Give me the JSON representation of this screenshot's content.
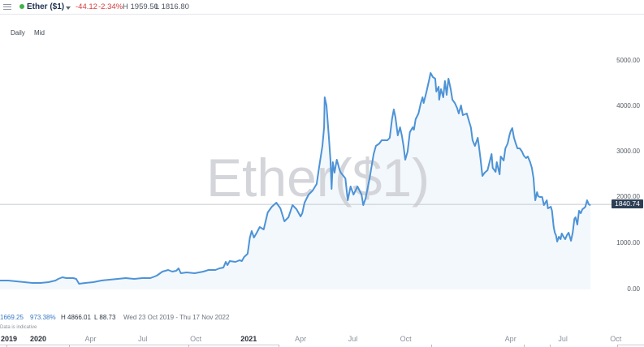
{
  "header": {
    "menu_icon": "hamburger-icon",
    "status_color": "#3cb44b",
    "instrument": "Ether ($1)",
    "dropdown_icon": "caret-down-icon",
    "change": "-44.12",
    "change_pct": "-2.34%",
    "change_color": "#d63b3b",
    "high": "H 1959.50",
    "low": "L 1816.80"
  },
  "toolbar": {
    "interval": "Daily",
    "price_type": "Mid"
  },
  "watermark": "Ether($1)",
  "price_tag": "1840.74",
  "footer": {
    "last": "1669.25",
    "change_pct": "973.38%",
    "high": "H 4866.01",
    "low": "L 88.73",
    "range": "Wed 23 Oct 2019 - Thu 17 Nov 2022",
    "disclaimer": "Data is indicative"
  },
  "colors": {
    "line": "#4d93d6",
    "fill": "#f3f8fd",
    "watermark": "#d3d5da",
    "price_line": "#c5c9cf",
    "price_tag_bg": "#2d3f55",
    "footer_blue": "#3a78c4"
  },
  "chart_data": {
    "type": "area",
    "title": "Ether ($1)",
    "subtitle": "Daily Mid",
    "xlabel": "",
    "ylabel": "",
    "ylim": [
      0,
      5000
    ],
    "y_tick_labels": [
      "5000.00",
      "4000.00",
      "3000.00",
      "2000.00",
      "1000.00",
      "0.00"
    ],
    "y_ticks": [
      5000,
      4000,
      3000,
      2000,
      1000,
      0
    ],
    "x_ticks": [
      {
        "label": "2019",
        "date": "2019-10-23",
        "year": true,
        "align": "left"
      },
      {
        "label": "2020",
        "date": "2020-01-01",
        "year": true
      },
      {
        "label": "Apr",
        "date": "2020-04-01"
      },
      {
        "label": "Jul",
        "date": "2020-07-01"
      },
      {
        "label": "Oct",
        "date": "2020-10-01"
      },
      {
        "label": "2021",
        "date": "2021-01-01",
        "year": true
      },
      {
        "label": "Apr",
        "date": "2021-04-01"
      },
      {
        "label": "Jul",
        "date": "2021-07-01"
      },
      {
        "label": "Oct",
        "date": "2021-10-01"
      },
      {
        "label": "Apr",
        "date": "2022-04-01"
      },
      {
        "label": "Jul",
        "date": "2022-07-01"
      },
      {
        "label": "Oct",
        "date": "2022-10-01"
      }
    ],
    "grid": false,
    "legend": "none",
    "last_value": 1840.74,
    "series": [
      {
        "name": "Ether ($1) Mid",
        "points": [
          [
            "2019-10-23",
            195
          ],
          [
            "2019-11-10",
            195
          ],
          [
            "2019-11-24",
            177
          ],
          [
            "2019-12-08",
            160
          ],
          [
            "2019-12-22",
            142
          ],
          [
            "2020-01-05",
            142
          ],
          [
            "2020-01-19",
            160
          ],
          [
            "2020-01-31",
            195
          ],
          [
            "2020-02-05",
            230
          ],
          [
            "2020-02-12",
            266
          ],
          [
            "2020-02-19",
            248
          ],
          [
            "2020-03-02",
            248
          ],
          [
            "2020-03-07",
            230
          ],
          [
            "2020-03-12",
            124
          ],
          [
            "2020-03-23",
            142
          ],
          [
            "2020-04-06",
            160
          ],
          [
            "2020-04-20",
            195
          ],
          [
            "2020-05-04",
            213
          ],
          [
            "2020-05-18",
            230
          ],
          [
            "2020-06-01",
            248
          ],
          [
            "2020-06-16",
            230
          ],
          [
            "2020-06-30",
            248
          ],
          [
            "2020-07-14",
            248
          ],
          [
            "2020-07-25",
            301
          ],
          [
            "2020-08-04",
            390
          ],
          [
            "2020-08-14",
            426
          ],
          [
            "2020-08-21",
            390
          ],
          [
            "2020-08-28",
            408
          ],
          [
            "2020-09-01",
            461
          ],
          [
            "2020-09-05",
            355
          ],
          [
            "2020-09-15",
            372
          ],
          [
            "2020-09-29",
            355
          ],
          [
            "2020-10-14",
            390
          ],
          [
            "2020-10-23",
            426
          ],
          [
            "2020-11-04",
            426
          ],
          [
            "2020-11-11",
            461
          ],
          [
            "2020-11-18",
            479
          ],
          [
            "2020-11-22",
            603
          ],
          [
            "2020-11-25",
            532
          ],
          [
            "2020-11-29",
            621
          ],
          [
            "2020-12-09",
            603
          ],
          [
            "2020-12-16",
            638
          ],
          [
            "2020-12-20",
            621
          ],
          [
            "2020-12-24",
            709
          ],
          [
            "2020-12-30",
            780
          ],
          [
            "2021-01-03",
            1135
          ],
          [
            "2021-01-06",
            1277
          ],
          [
            "2021-01-10",
            1135
          ],
          [
            "2021-01-15",
            1241
          ],
          [
            "2021-01-20",
            1365
          ],
          [
            "2021-01-27",
            1312
          ],
          [
            "2021-02-03",
            1684
          ],
          [
            "2021-02-10",
            1809
          ],
          [
            "2021-02-18",
            1897
          ],
          [
            "2021-02-25",
            1773
          ],
          [
            "2021-03-04",
            1489
          ],
          [
            "2021-03-11",
            1578
          ],
          [
            "2021-03-18",
            1844
          ],
          [
            "2021-03-25",
            1755
          ],
          [
            "2021-04-01",
            1596
          ],
          [
            "2021-04-04",
            1667
          ],
          [
            "2021-04-08",
            1897
          ],
          [
            "2021-04-15",
            2074
          ],
          [
            "2021-04-22",
            2163
          ],
          [
            "2021-04-29",
            2305
          ],
          [
            "2021-05-03",
            2642
          ],
          [
            "2021-05-09",
            3138
          ],
          [
            "2021-05-12",
            3546
          ],
          [
            "2021-05-13",
            4202
          ],
          [
            "2021-05-16",
            4025
          ],
          [
            "2021-05-20",
            3369
          ],
          [
            "2021-05-23",
            2837
          ],
          [
            "2021-05-25",
            2199
          ],
          [
            "2021-05-27",
            2784
          ],
          [
            "2021-05-30",
            2553
          ],
          [
            "2021-06-03",
            2837
          ],
          [
            "2021-06-08",
            2606
          ],
          [
            "2021-06-10",
            2553
          ],
          [
            "2021-06-18",
            2429
          ],
          [
            "2021-06-22",
            1950
          ],
          [
            "2021-06-27",
            2252
          ],
          [
            "2021-07-02",
            2074
          ],
          [
            "2021-07-09",
            2252
          ],
          [
            "2021-07-16",
            2074
          ],
          [
            "2021-07-19",
            1844
          ],
          [
            "2021-07-23",
            1986
          ],
          [
            "2021-07-30",
            2429
          ],
          [
            "2021-08-06",
            2961
          ],
          [
            "2021-08-10",
            3138
          ],
          [
            "2021-08-16",
            3191
          ],
          [
            "2021-08-20",
            3262
          ],
          [
            "2021-08-30",
            3262
          ],
          [
            "2021-09-03",
            3316
          ],
          [
            "2021-09-07",
            3723
          ],
          [
            "2021-09-10",
            3936
          ],
          [
            "2021-09-13",
            3759
          ],
          [
            "2021-09-17",
            3369
          ],
          [
            "2021-09-21",
            3546
          ],
          [
            "2021-09-24",
            3369
          ],
          [
            "2021-09-27",
            3138
          ],
          [
            "2021-09-30",
            2837
          ],
          [
            "2021-10-04",
            3014
          ],
          [
            "2021-10-08",
            3440
          ],
          [
            "2021-10-13",
            3546
          ],
          [
            "2021-10-15",
            3493
          ],
          [
            "2021-10-18",
            3723
          ],
          [
            "2021-10-23",
            3848
          ],
          [
            "2021-10-27",
            4078
          ],
          [
            "2021-10-30",
            4202
          ],
          [
            "2021-11-01",
            4078
          ],
          [
            "2021-11-06",
            4326
          ],
          [
            "2021-11-10",
            4557
          ],
          [
            "2021-11-13",
            4734
          ],
          [
            "2021-11-17",
            4645
          ],
          [
            "2021-11-21",
            4610
          ],
          [
            "2021-11-23",
            4326
          ],
          [
            "2021-11-27",
            4433
          ],
          [
            "2021-11-28",
            4149
          ],
          [
            "2021-12-01",
            4379
          ],
          [
            "2021-12-05",
            4202
          ],
          [
            "2021-12-08",
            4557
          ],
          [
            "2021-12-11",
            4255
          ],
          [
            "2021-12-14",
            4610
          ],
          [
            "2021-12-18",
            4379
          ],
          [
            "2021-12-21",
            4149
          ],
          [
            "2021-12-25",
            4078
          ],
          [
            "2021-12-29",
            3972
          ],
          [
            "2022-01-01",
            3848
          ],
          [
            "2022-01-05",
            4025
          ],
          [
            "2022-01-08",
            3812
          ],
          [
            "2022-01-15",
            3848
          ],
          [
            "2022-01-19",
            3670
          ],
          [
            "2022-01-22",
            3546
          ],
          [
            "2022-01-25",
            3262
          ],
          [
            "2022-01-29",
            3138
          ],
          [
            "2022-02-03",
            3316
          ],
          [
            "2022-02-05",
            3138
          ],
          [
            "2022-02-08",
            2837
          ],
          [
            "2022-02-11",
            2482
          ],
          [
            "2022-02-15",
            2553
          ],
          [
            "2022-02-20",
            2606
          ],
          [
            "2022-02-27",
            2961
          ],
          [
            "2022-03-01",
            2660
          ],
          [
            "2022-03-06",
            2571
          ],
          [
            "2022-03-08",
            2784
          ],
          [
            "2022-03-13",
            2518
          ],
          [
            "2022-03-15",
            2908
          ],
          [
            "2022-03-20",
            2819
          ],
          [
            "2022-03-23",
            3085
          ],
          [
            "2022-03-27",
            3191
          ],
          [
            "2022-03-30",
            3369
          ],
          [
            "2022-04-01",
            3457
          ],
          [
            "2022-04-04",
            3528
          ],
          [
            "2022-04-07",
            3316
          ],
          [
            "2022-04-10",
            3191
          ],
          [
            "2022-04-13",
            3085
          ],
          [
            "2022-04-17",
            3085
          ],
          [
            "2022-04-21",
            3014
          ],
          [
            "2022-04-24",
            2926
          ],
          [
            "2022-04-28",
            2872
          ],
          [
            "2022-05-01",
            2908
          ],
          [
            "2022-05-05",
            2784
          ],
          [
            "2022-05-08",
            2660
          ],
          [
            "2022-05-11",
            2429
          ],
          [
            "2022-05-12",
            2252
          ],
          [
            "2022-05-14",
            1950
          ],
          [
            "2022-05-17",
            2128
          ],
          [
            "2022-05-19",
            2039
          ],
          [
            "2022-05-22",
            2021
          ],
          [
            "2022-05-26",
            2021
          ],
          [
            "2022-05-29",
            1844
          ],
          [
            "2022-06-03",
            1950
          ],
          [
            "2022-06-05",
            1773
          ],
          [
            "2022-06-10",
            1809
          ],
          [
            "2022-06-12",
            1720
          ],
          [
            "2022-06-15",
            1365
          ],
          [
            "2022-06-17",
            1241
          ],
          [
            "2022-06-19",
            1188
          ],
          [
            "2022-06-21",
            1046
          ],
          [
            "2022-06-24",
            1152
          ],
          [
            "2022-06-27",
            1099
          ],
          [
            "2022-06-29",
            1223
          ],
          [
            "2022-07-02",
            1152
          ],
          [
            "2022-07-05",
            1099
          ],
          [
            "2022-07-08",
            1188
          ],
          [
            "2022-07-11",
            1241
          ],
          [
            "2022-07-15",
            1064
          ],
          [
            "2022-07-18",
            1241
          ],
          [
            "2022-07-21",
            1543
          ],
          [
            "2022-07-23",
            1578
          ],
          [
            "2022-07-26",
            1418
          ],
          [
            "2022-07-29",
            1720
          ],
          [
            "2022-08-01",
            1667
          ],
          [
            "2022-08-04",
            1755
          ],
          [
            "2022-08-06",
            1773
          ],
          [
            "2022-08-09",
            1809
          ],
          [
            "2022-08-12",
            1950
          ],
          [
            "2022-08-15",
            1862
          ],
          [
            "2022-08-18",
            1841
          ]
        ]
      }
    ]
  }
}
